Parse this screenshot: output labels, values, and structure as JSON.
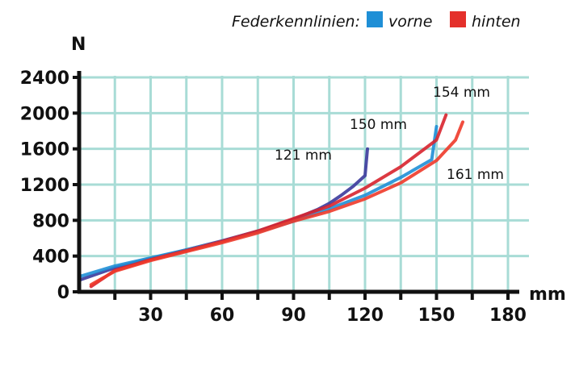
{
  "chart_data": {
    "type": "line",
    "legend_title": "Federkennlinien:",
    "legend": [
      {
        "label": "vorne",
        "color": "#1f8fd6"
      },
      {
        "label": "hinten",
        "color": "#e4302b"
      }
    ],
    "legend_placement": "top-right",
    "xlabel": "mm",
    "ylabel": "N",
    "xlim": [
      0,
      180
    ],
    "ylim": [
      0,
      2400
    ],
    "x_ticks": [
      30,
      60,
      90,
      120,
      150,
      180
    ],
    "y_ticks": [
      0,
      400,
      800,
      1200,
      1600,
      2000,
      2400
    ],
    "grid": true,
    "grid_color": "#a8dcd6",
    "series": [
      {
        "group": "vorne",
        "color": "#3b3a9c",
        "x": [
          0,
          15,
          30,
          45,
          60,
          75,
          90,
          100,
          105,
          110,
          115,
          120,
          121
        ],
        "y": [
          130,
          270,
          370,
          470,
          570,
          680,
          810,
          920,
          990,
          1080,
          1180,
          1300,
          1600
        ]
      },
      {
        "group": "vorne",
        "color": "#1f8fd6",
        "x": [
          0,
          15,
          30,
          45,
          60,
          75,
          90,
          105,
          120,
          135,
          148,
          150
        ],
        "y": [
          170,
          290,
          380,
          470,
          565,
          670,
          790,
          930,
          1080,
          1280,
          1480,
          1850
        ]
      },
      {
        "group": "hinten",
        "color": "#d8242e",
        "x": [
          5,
          15,
          30,
          45,
          60,
          75,
          90,
          105,
          120,
          135,
          150,
          154
        ],
        "y": [
          60,
          240,
          360,
          460,
          565,
          680,
          820,
          960,
          1160,
          1400,
          1700,
          1980
        ]
      },
      {
        "group": "hinten",
        "color": "#ee3a2a",
        "x": [
          5,
          15,
          30,
          45,
          60,
          75,
          90,
          105,
          120,
          135,
          150,
          158,
          161
        ],
        "y": [
          80,
          230,
          350,
          450,
          550,
          660,
          790,
          900,
          1040,
          1220,
          1470,
          1700,
          1900
        ]
      }
    ],
    "annotations": [
      "121 mm",
      "150 mm",
      "154 mm",
      "161 mm"
    ]
  }
}
